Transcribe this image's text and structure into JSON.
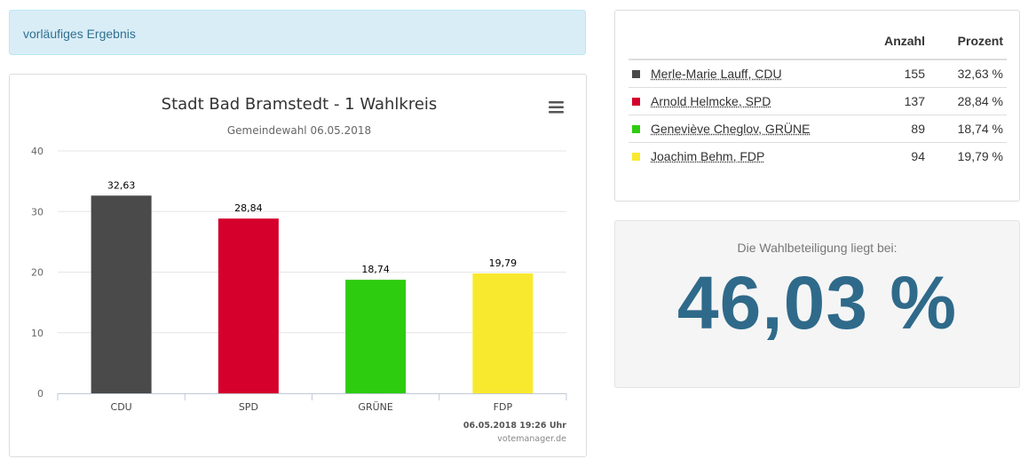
{
  "alert": {
    "text": "vorläufiges Ergebnis"
  },
  "chart_data": {
    "type": "bar",
    "title": "Stadt Bad Bramstedt - 1 Wahlkreis",
    "subtitle": "Gemeindewahl 06.05.2018",
    "categories": [
      "CDU",
      "SPD",
      "GRÜNE",
      "FDP"
    ],
    "values": [
      32.63,
      28.84,
      18.74,
      19.79
    ],
    "data_labels": [
      "32,63",
      "28,84",
      "18,74",
      "19,79"
    ],
    "colors": [
      "#4a4a4a",
      "#d5002c",
      "#2ecc0e",
      "#f9e92e"
    ],
    "yticks": [
      0,
      10,
      20,
      30,
      40
    ],
    "ylim": [
      0,
      40
    ],
    "xlabel": "",
    "ylabel": "",
    "grid": true,
    "timestamp": "06.05.2018 19:26 Uhr",
    "credit": "votemanager.de",
    "menu_icon": "hamburger-menu-icon"
  },
  "results": {
    "headers": {
      "name": "",
      "count": "Anzahl",
      "percent": "Prozent"
    },
    "rows": [
      {
        "name": "Merle-Marie Lauff, CDU",
        "count": "155",
        "percent": "32,63 %",
        "color": "#4a4a4a"
      },
      {
        "name": "Arnold Helmcke, SPD",
        "count": "137",
        "percent": "28,84 %",
        "color": "#d5002c"
      },
      {
        "name": "Geneviève Cheglov, GRÜNE",
        "count": "89",
        "percent": "18,74 %",
        "color": "#2ecc0e"
      },
      {
        "name": "Joachim Behm, FDP",
        "count": "94",
        "percent": "19,79 %",
        "color": "#f9e92e"
      }
    ]
  },
  "turnout": {
    "label": "Die Wahlbeteiligung liegt bei:",
    "value": "46,03 %"
  }
}
